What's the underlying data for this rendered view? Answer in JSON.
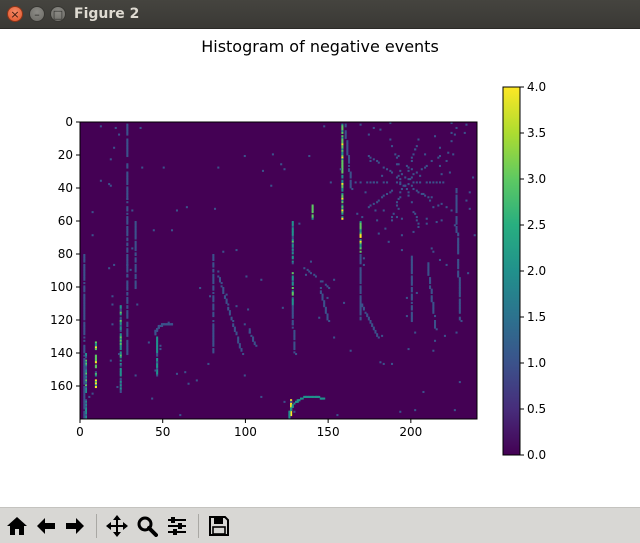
{
  "window": {
    "title": "Figure 2"
  },
  "window_buttons": {
    "close": "×",
    "minimize": "–",
    "maximize": "□"
  },
  "toolbar": {
    "buttons": [
      {
        "id": "home",
        "icon": "home-icon"
      },
      {
        "id": "back",
        "icon": "arrow-left-icon"
      },
      {
        "id": "forward",
        "icon": "arrow-right-icon"
      },
      {
        "id": "pan",
        "icon": "move-icon"
      },
      {
        "id": "zoom",
        "icon": "magnifier-icon"
      },
      {
        "id": "configure",
        "icon": "sliders-icon"
      },
      {
        "id": "save",
        "icon": "floppy-disk-icon"
      }
    ]
  },
  "chart_data": {
    "type": "heatmap",
    "title": "Histogram of negative events",
    "xlim": [
      0,
      240
    ],
    "ylim": [
      180,
      0
    ],
    "xticks": [
      0,
      50,
      100,
      150,
      200
    ],
    "yticks": [
      0,
      20,
      40,
      60,
      80,
      100,
      120,
      140,
      160
    ],
    "colormap": "viridis",
    "colorbar": {
      "range": [
        0.0,
        4.0
      ],
      "ticks": [
        "0.0",
        "0.5",
        "1.0",
        "1.5",
        "2.0",
        "2.5",
        "3.0",
        "3.5",
        "4.0"
      ]
    },
    "background_color": "#440154",
    "features": [
      {
        "kind": "segment",
        "x0": 158,
        "y0": 0,
        "x1": 158,
        "y1": 58,
        "value": 3
      },
      {
        "kind": "segment",
        "x0": 128,
        "y0": 60,
        "x1": 128,
        "y1": 110,
        "value": 2
      },
      {
        "kind": "segment",
        "x0": 140,
        "y0": 50,
        "x1": 140,
        "y1": 58,
        "value": 3
      },
      {
        "kind": "segment",
        "x0": 169,
        "y0": 60,
        "x1": 169,
        "y1": 78,
        "value": 3
      },
      {
        "kind": "segment",
        "x0": 169,
        "y0": 80,
        "x1": 169,
        "y1": 120,
        "value": 1
      },
      {
        "kind": "segment",
        "x0": 9,
        "y0": 132,
        "x1": 9,
        "y1": 160,
        "value": 3
      },
      {
        "kind": "segment",
        "x0": 46,
        "y0": 130,
        "x1": 46,
        "y1": 153,
        "value": 2
      },
      {
        "kind": "segment",
        "x0": 24,
        "y0": 110,
        "x1": 24,
        "y1": 163,
        "value": 2
      },
      {
        "kind": "segment",
        "x0": 3,
        "y0": 140,
        "x1": 3,
        "y1": 180,
        "value": 2
      },
      {
        "kind": "segment",
        "x0": 80,
        "y0": 80,
        "x1": 80,
        "y1": 140,
        "value": 1
      },
      {
        "kind": "segment",
        "x0": 83,
        "y0": 90,
        "x1": 98,
        "y1": 140,
        "value": 1
      },
      {
        "kind": "segment",
        "x0": 28,
        "y0": 0,
        "x1": 28,
        "y1": 140,
        "value": 1
      },
      {
        "kind": "segment",
        "x0": 33,
        "y0": 60,
        "x1": 33,
        "y1": 100,
        "value": 1
      },
      {
        "kind": "segment",
        "x0": 2,
        "y0": 80,
        "x1": 2,
        "y1": 180,
        "value": 1
      },
      {
        "kind": "segment",
        "x0": 128,
        "y0": 110,
        "x1": 130,
        "y1": 140,
        "value": 1
      },
      {
        "kind": "segment",
        "x0": 170,
        "y0": 110,
        "x1": 180,
        "y1": 130,
        "value": 1
      },
      {
        "kind": "segment",
        "x0": 127,
        "y0": 168,
        "x1": 127,
        "y1": 178,
        "value": 4
      },
      {
        "kind": "segment",
        "x0": 160,
        "y0": 0,
        "x1": 164,
        "y1": 40,
        "value": 1
      },
      {
        "kind": "segment",
        "x0": 145,
        "y0": 100,
        "x1": 150,
        "y1": 120,
        "value": 1
      },
      {
        "kind": "segment",
        "x0": 135,
        "y0": 88,
        "x1": 150,
        "y1": 100,
        "value": 1
      },
      {
        "kind": "segment",
        "x0": 102,
        "y0": 125,
        "x1": 106,
        "y1": 135,
        "value": 1
      },
      {
        "kind": "segment",
        "x0": 200,
        "y0": 80,
        "x1": 200,
        "y1": 120,
        "value": 1
      },
      {
        "kind": "segment",
        "x0": 210,
        "y0": 85,
        "x1": 215,
        "y1": 125,
        "value": 1
      },
      {
        "kind": "segment",
        "x0": 227,
        "y0": 40,
        "x1": 230,
        "y1": 120,
        "value": 1
      },
      {
        "kind": "arc",
        "cx": 140,
        "cy": 180,
        "r": 14,
        "start": 180,
        "end": 300,
        "value": 2
      },
      {
        "kind": "arc",
        "cx": 53,
        "cy": 130,
        "r": 8,
        "start": 190,
        "end": 290,
        "value": 1
      },
      {
        "kind": "starburst",
        "cx": 196,
        "cy": 36,
        "r": 28,
        "rays": 10,
        "value": 1
      },
      {
        "kind": "scatter",
        "x0": 170,
        "x1": 240,
        "y0": 0,
        "y1": 70,
        "count": 50,
        "value": 1
      },
      {
        "kind": "scatter",
        "x0": 0,
        "x1": 240,
        "y0": 0,
        "y1": 180,
        "count": 130,
        "value": 1
      }
    ]
  }
}
